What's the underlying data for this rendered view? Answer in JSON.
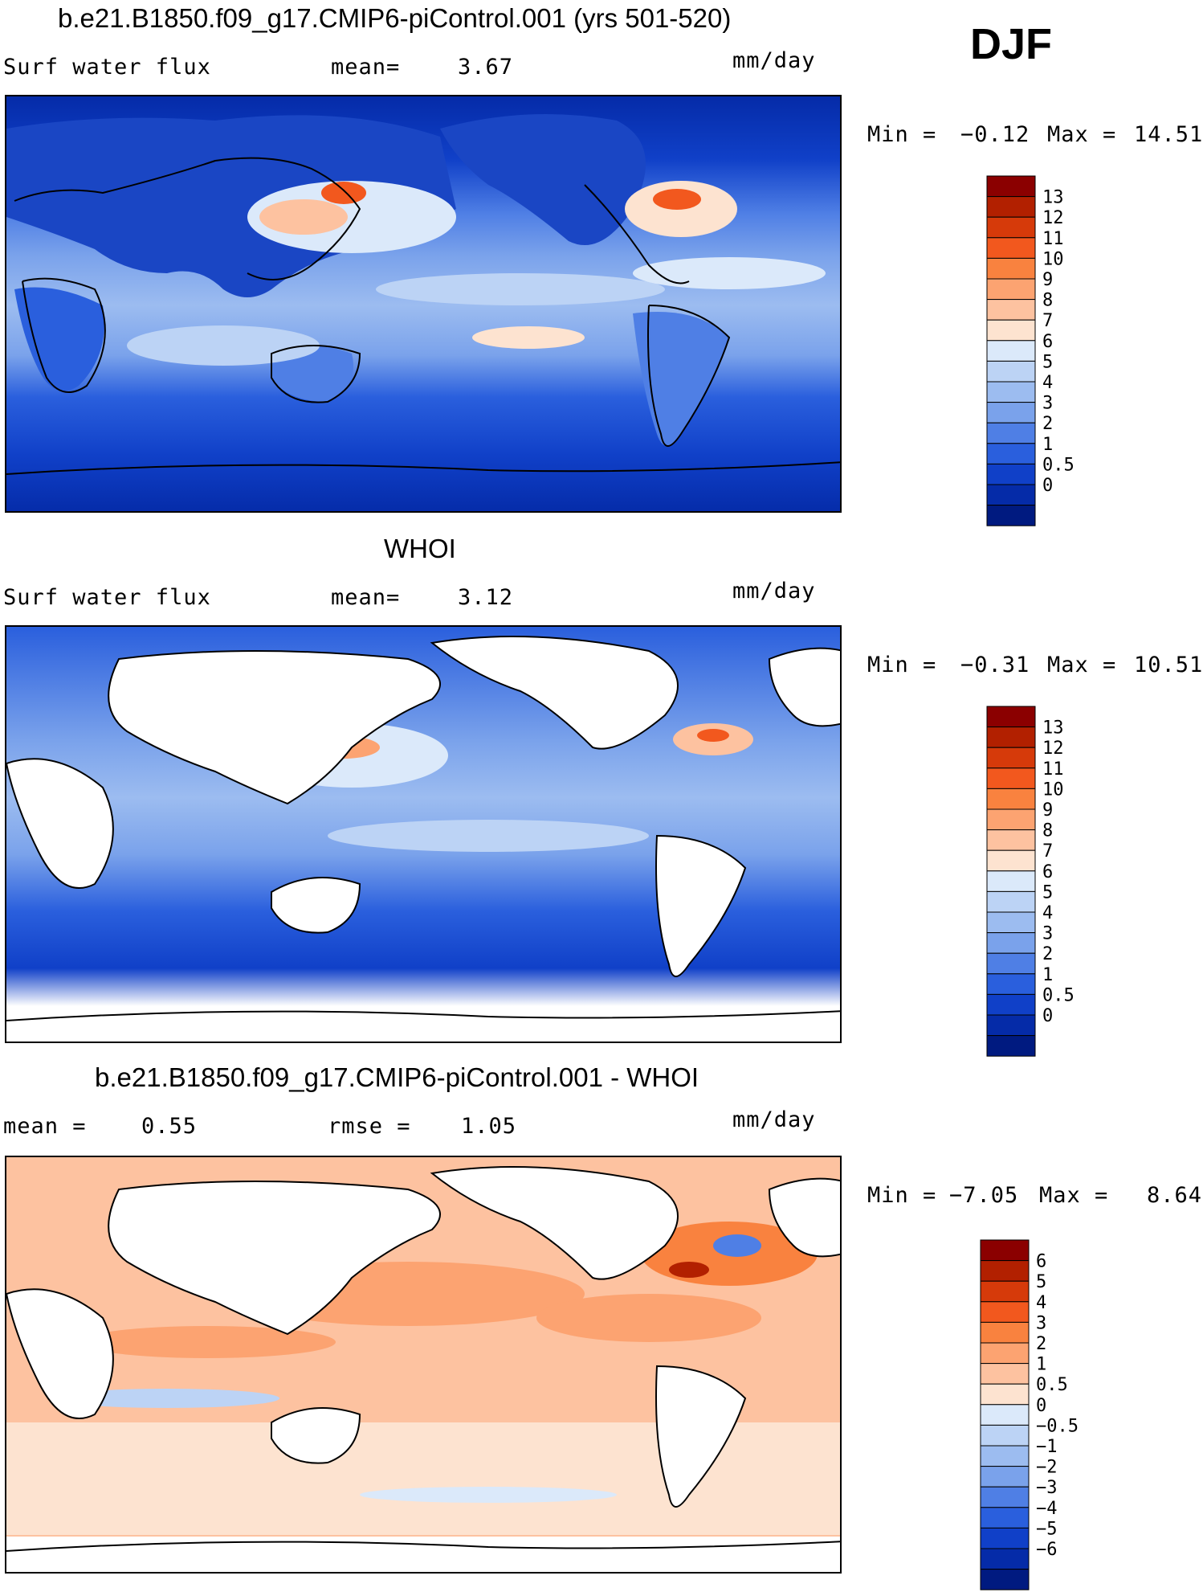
{
  "season": "DJF",
  "panels": [
    {
      "title": "b.e21.B1850.f09_g17.CMIP6-piControl.001 (yrs 501-520)",
      "variable": "Surf water flux",
      "stat1_label": "mean=",
      "stat1_value": "3.67",
      "units": "mm/day",
      "range_text": {
        "min_label": "Min =",
        "min": "−0.12",
        "max_label": "Max =",
        "max": "14.51"
      },
      "colorbar": {
        "labels": [
          "13",
          "12",
          "11",
          "10",
          "9",
          "8",
          "7",
          "6",
          "5",
          "4",
          "3",
          "2",
          "1",
          "0.5",
          "0"
        ],
        "colors": [
          "#8b0000",
          "#b22000",
          "#d63a0a",
          "#f2581e",
          "#f9823f",
          "#fca371",
          "#fdc2a0",
          "#fde3d0",
          "#dbe9fa",
          "#bcd3f5",
          "#9cbcf0",
          "#7aa2eb",
          "#4f7fe5",
          "#2a5fdd",
          "#1040c8",
          "#052ba8",
          "#001a80"
        ]
      },
      "map_type": "model"
    },
    {
      "title": "WHOI",
      "variable": "Surf water flux",
      "stat1_label": "mean=",
      "stat1_value": "3.12",
      "units": "mm/day",
      "range_text": {
        "min_label": "Min =",
        "min": "−0.31",
        "max_label": "Max =",
        "max": "10.51"
      },
      "colorbar": {
        "labels": [
          "13",
          "12",
          "11",
          "10",
          "9",
          "8",
          "7",
          "6",
          "5",
          "4",
          "3",
          "2",
          "1",
          "0.5",
          "0"
        ],
        "colors": [
          "#8b0000",
          "#b22000",
          "#d63a0a",
          "#f2581e",
          "#f9823f",
          "#fca371",
          "#fdc2a0",
          "#fde3d0",
          "#dbe9fa",
          "#bcd3f5",
          "#9cbcf0",
          "#7aa2eb",
          "#4f7fe5",
          "#2a5fdd",
          "#1040c8",
          "#052ba8",
          "#001a80"
        ]
      },
      "map_type": "obs"
    },
    {
      "title": "b.e21.B1850.f09_g17.CMIP6-piControl.001 - WHOI",
      "stat1_label": "mean =",
      "stat1_value": "0.55",
      "stat2_label": "rmse =",
      "stat2_value": "1.05",
      "units": "mm/day",
      "range_text": {
        "min_label": "Min =",
        "min": "−7.05",
        "max_label": "Max =",
        "max": "8.64"
      },
      "colorbar": {
        "labels": [
          "6",
          "5",
          "4",
          "3",
          "2",
          "1",
          "0.5",
          "0",
          "−0.5",
          "−1",
          "−2",
          "−3",
          "−4",
          "−5",
          "−6"
        ],
        "colors": [
          "#8b0000",
          "#b22000",
          "#d63a0a",
          "#f2581e",
          "#f9823f",
          "#fca371",
          "#fdc2a0",
          "#fde3d0",
          "#dbe9fa",
          "#bcd3f5",
          "#9cbcf0",
          "#7aa2eb",
          "#4f7fe5",
          "#2a5fdd",
          "#1040c8",
          "#052ba8",
          "#001a80"
        ]
      },
      "map_type": "diff"
    }
  ]
}
